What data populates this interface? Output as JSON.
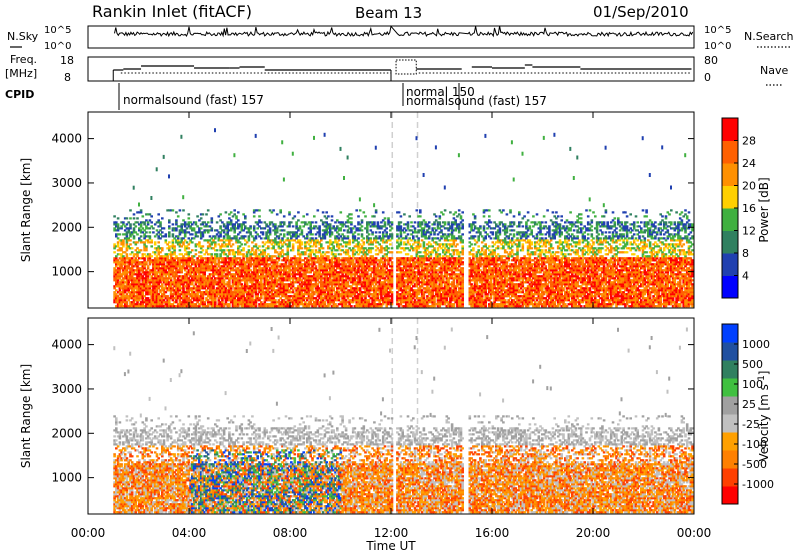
{
  "header": {
    "station": "Rankin Inlet (fitACF)",
    "beam": "Beam 13",
    "date": "01/Sep/2010"
  },
  "status_panels": {
    "nsky_label": "N.Sky",
    "nsearch_label": "N.Search",
    "noise_ticks": [
      "10^5",
      "10^0"
    ],
    "freq_label_1": "Freq.",
    "freq_label_2": "[MHz]",
    "freq_ticks": [
      "18",
      "8"
    ],
    "nave_label": "Nave",
    "nave_ticks": [
      "80",
      "0"
    ],
    "cpid_label": "CPID",
    "cpid_segments": [
      {
        "label": "normalsound (fast) 157",
        "start_h": 1.0
      },
      {
        "label": "normal 150",
        "start_h": 12.2
      },
      {
        "label": "normalsound (fast) 157",
        "start_h": 13.0
      }
    ]
  },
  "colors": {
    "power": [
      "#0000ff",
      "#2040b0",
      "#308060",
      "#40b040",
      "#ffd000",
      "#ff9000",
      "#ff6000",
      "#ff0000"
    ],
    "velocity": [
      "#ff0000",
      "#ff4000",
      "#ff8000",
      "#ffa000",
      "#c0c0c0",
      "#a0a0a0",
      "#40c040",
      "#308060",
      "#2050a0",
      "#0040ff"
    ],
    "gap": "#d0d0d0"
  },
  "chart_data": [
    {
      "type": "heatmap",
      "name": "power",
      "ylabel": "Slant Range [km]",
      "ylim": [
        180,
        4600
      ],
      "yticks": [
        1000,
        2000,
        3000,
        4000
      ],
      "colorbar_label": "Power [dB]",
      "colorbar_ticks": [
        "28",
        "24",
        "20",
        "16",
        "12",
        "8",
        "4"
      ]
    },
    {
      "type": "heatmap",
      "name": "velocity",
      "ylabel": "Slant Range [km]",
      "xlabel": "Time UT",
      "ylim": [
        180,
        4600
      ],
      "yticks": [
        1000,
        2000,
        3000,
        4000
      ],
      "xticks": [
        "00:00",
        "04:00",
        "08:00",
        "12:00",
        "16:00",
        "20:00",
        "00:00"
      ],
      "colorbar_label": "Velocity [m s",
      "colorbar_label_sup": "-1",
      "colorbar_label_end": "]",
      "colorbar_ticks": [
        "1000",
        "500",
        "100",
        "25",
        "-25",
        "-100",
        "-500",
        "-1000"
      ]
    }
  ]
}
